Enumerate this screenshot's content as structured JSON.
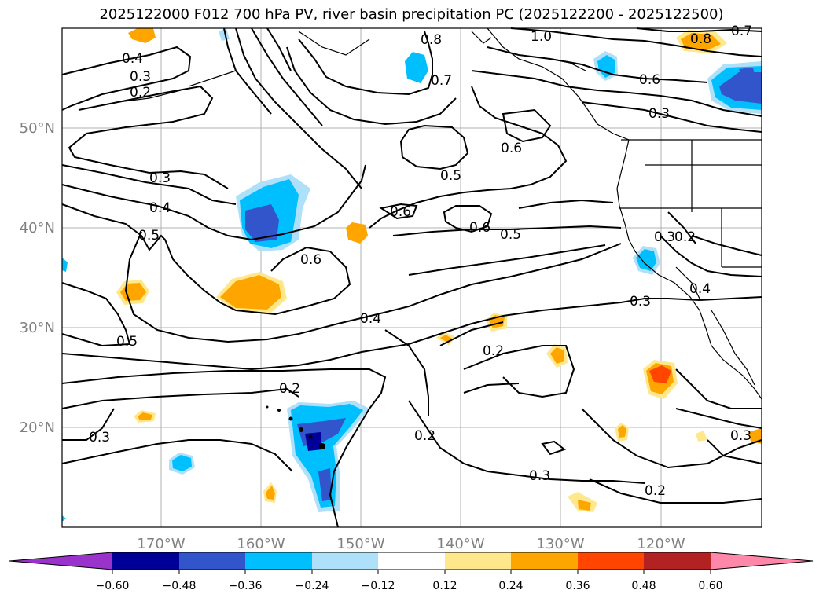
{
  "title": "2025122000 F012 700 hPa PV, river basin precipitation PC (2025122200 - 2025122500)",
  "map": {
    "lon_labels": [
      "170°W",
      "160°W",
      "150°W",
      "140°W",
      "130°W",
      "120°W"
    ],
    "lat_labels": [
      "50°N",
      "40°N",
      "30°N",
      "20°N"
    ],
    "contour_labels": [
      "0.4",
      "0.3",
      "0.2",
      "0.8",
      "1.0",
      "0.8",
      "0.7",
      "0.6",
      "0.7",
      "0.3",
      "0.6",
      "0.5",
      "0.3",
      "0.4",
      "0.5",
      "0.6",
      "0.6",
      "0.5",
      "0.6",
      "0.3",
      "0.2",
      "0.3",
      "0.4",
      "0.5",
      "0.4",
      "0.2",
      "0.2",
      "0.3",
      "0.2",
      "0.3",
      "0.2",
      "0.3"
    ],
    "land_color": "#000000",
    "grid": true
  },
  "colorbar": {
    "colors": [
      "#9933cc",
      "#000099",
      "#3355cc",
      "#00bfff",
      "#aee0fa",
      "#ffffff",
      "#ffe88c",
      "#ffa500",
      "#ff4500",
      "#b22222",
      "#ff88aa"
    ],
    "tick_labels": [
      "−0.60",
      "−0.48",
      "−0.36",
      "−0.24",
      "−0.12",
      "0.12",
      "0.24",
      "0.36",
      "0.48",
      "0.60"
    ],
    "extend": "both"
  }
}
